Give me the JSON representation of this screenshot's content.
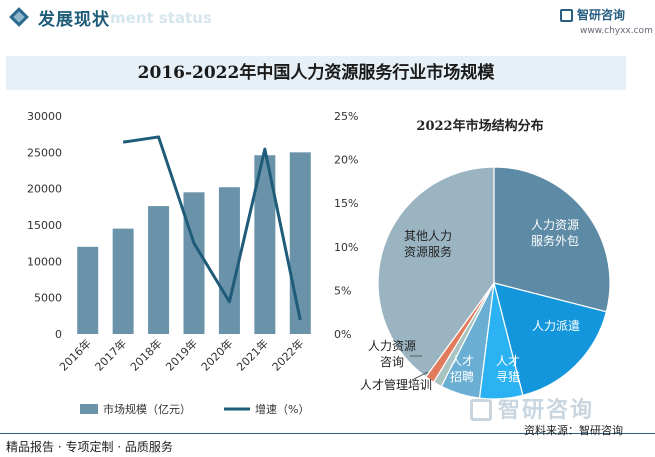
{
  "header": {
    "title": "发展现状",
    "subtitle": "ment status"
  },
  "brand": {
    "name": "智研咨询",
    "url": "www.chyxx.com"
  },
  "banner_title": "2016-2022年中国人力资源服务行业市场规模",
  "footer": {
    "left": "精品报告 · 专项定制 · 品质服务",
    "source": "资料来源：智研咨询"
  },
  "colors": {
    "bar": "#6a93a9",
    "line": "#1f5c7a",
    "banner_bg": "#e7f0f6"
  },
  "chart_data": [
    {
      "type": "bar",
      "title": "",
      "categories": [
        "2016年",
        "2017年",
        "2018年",
        "2019年",
        "2020年",
        "2021年",
        "2022年"
      ],
      "series": [
        {
          "name": "市场规模（亿元）",
          "type": "bar",
          "axis": "left",
          "values": [
            12000,
            14500,
            17600,
            19500,
            20200,
            24600,
            25000
          ]
        },
        {
          "name": "增速（%）",
          "type": "line",
          "axis": "right",
          "values": [
            null,
            22,
            22.6,
            10.4,
            3.7,
            21.2,
            1.6
          ]
        }
      ],
      "y_left": {
        "ticks": [
          "0",
          "5000",
          "10000",
          "15000",
          "20000",
          "25000",
          "30000"
        ],
        "range": [
          0,
          30000
        ]
      },
      "y_right": {
        "ticks": [
          "0%",
          "5%",
          "10%",
          "15%",
          "20%",
          "25%"
        ],
        "range": [
          0,
          25
        ]
      },
      "legend": "bottom"
    },
    {
      "type": "pie",
      "title": "2022年市场结构分布",
      "slices": [
        {
          "label": "人力资源服务外包",
          "value": 29,
          "color": "#5d8ba5"
        },
        {
          "label": "人力派遣",
          "value": 17,
          "color": "#1496dc"
        },
        {
          "label": "人才寻猎",
          "value": 6,
          "color": "#2bb2f2"
        },
        {
          "label": "人才招聘",
          "value": 5.5,
          "color": "#6aaed3"
        },
        {
          "label": "人才管理培训",
          "value": 1.2,
          "color": "#a8c4c2"
        },
        {
          "label": "人力资源咨询",
          "value": 1.3,
          "color": "#e27b5d"
        },
        {
          "label": "其他人力资源服务",
          "value": 40,
          "color": "#9bb4c2"
        }
      ]
    }
  ]
}
